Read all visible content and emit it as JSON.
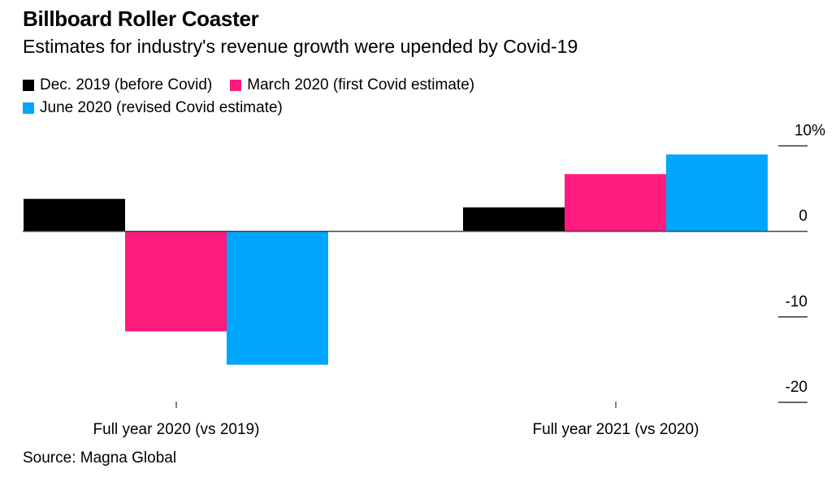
{
  "title": "Billboard Roller Coaster",
  "subtitle": "Estimates for industry's revenue growth were upended by Covid-19",
  "source": "Source: Magna Global",
  "chart_data": {
    "type": "bar",
    "title": "Billboard Roller Coaster",
    "subtitle": "Estimates for industry's revenue growth were upended by Covid-19",
    "categories": [
      "Full year 2020 (vs 2019)",
      "Full year 2021 (vs 2020)"
    ],
    "series": [
      {
        "name": "Dec. 2019 (before Covid)",
        "color": "#000000",
        "values": [
          3.8,
          2.8
        ]
      },
      {
        "name": "March 2020 (first Covid estimate)",
        "color": "#ff1a7d",
        "values": [
          -11.7,
          6.7
        ]
      },
      {
        "name": "June 2020 (revised Covid estimate)",
        "color": "#00a6fb",
        "values": [
          -15.6,
          9.0
        ]
      }
    ],
    "xlabel": "",
    "ylabel": "",
    "ylim": [
      -20,
      10
    ],
    "yticks": [
      10,
      0,
      -10,
      -20
    ],
    "ytick_labels": [
      "10%",
      "0",
      "-10",
      "-20"
    ],
    "y_axis_position": "right",
    "grid": false,
    "legend_position": "top-left",
    "source": "Source: Magna Global"
  }
}
